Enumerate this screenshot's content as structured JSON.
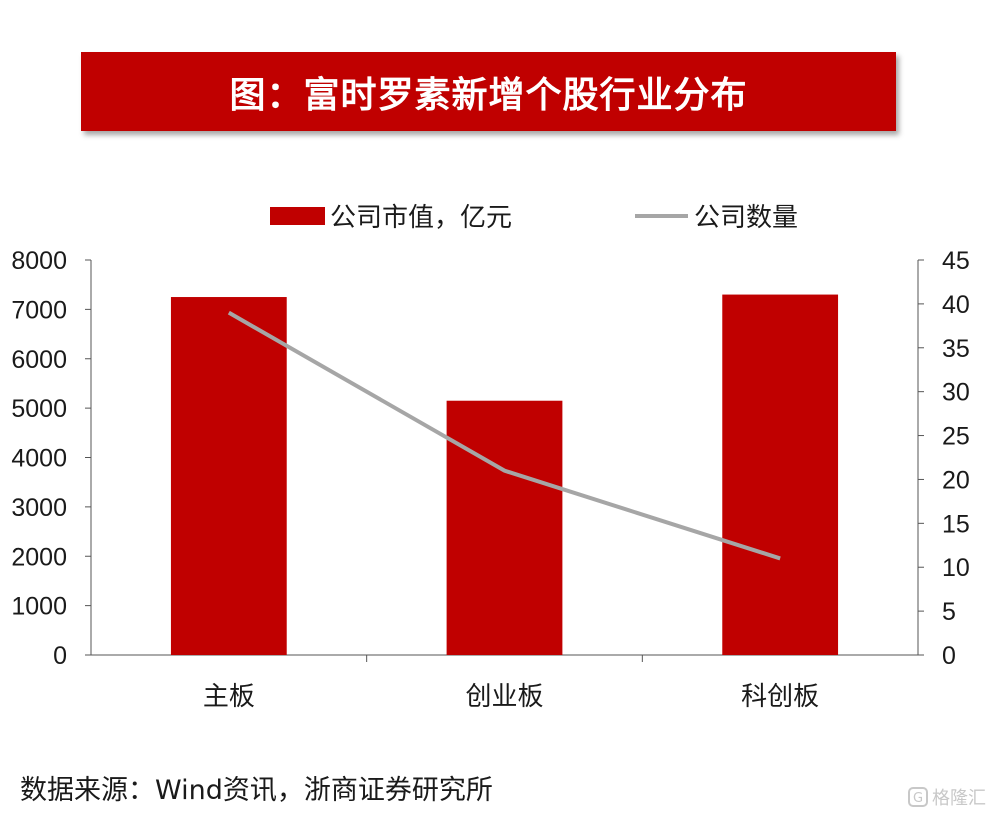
{
  "title": "图：富时罗素新增个股行业分布",
  "source": "数据来源：Wind资讯，浙商证券研究所",
  "watermark": "格隆汇",
  "watermark_icon": "G",
  "colors": {
    "bar": "#c00000",
    "line": "#a6a6a6",
    "banner": "#c00000"
  },
  "chart_data": {
    "type": "bar",
    "categories": [
      "主板",
      "创业板",
      "科创板"
    ],
    "series": [
      {
        "name": "公司市值，亿元",
        "type": "bar",
        "axis": "left",
        "values": [
          7250,
          5150,
          7300
        ]
      },
      {
        "name": "公司数量",
        "type": "line",
        "axis": "right",
        "values": [
          39,
          21,
          11
        ]
      }
    ],
    "ylim": [
      0,
      8000
    ],
    "y_ticks": [
      "0",
      "1000",
      "2000",
      "3000",
      "4000",
      "5000",
      "6000",
      "7000",
      "8000"
    ],
    "y2lim": [
      0,
      45
    ],
    "y2_ticks": [
      "0",
      "5",
      "10",
      "15",
      "20",
      "25",
      "30",
      "35",
      "40",
      "45"
    ],
    "legend_position": "top",
    "grid": false
  }
}
